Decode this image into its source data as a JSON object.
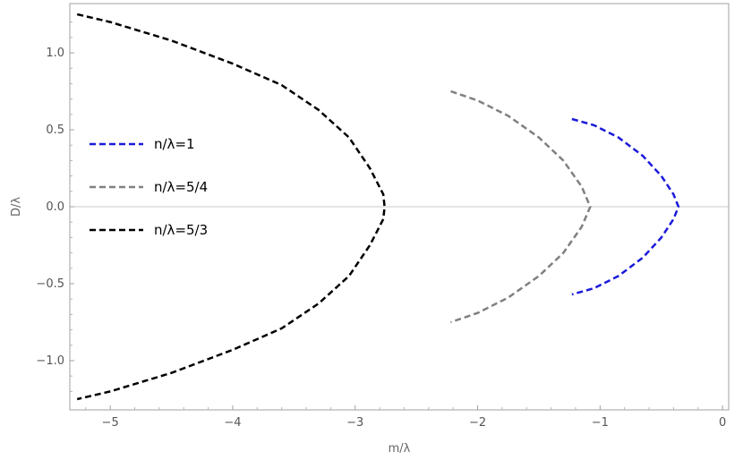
{
  "chart_data": {
    "type": "line",
    "title": "",
    "xlabel": "m/λ",
    "ylabel": "D/λ",
    "xlim": [
      -5.33,
      0.05
    ],
    "ylim": [
      -1.32,
      1.32
    ],
    "xticks": [
      -5,
      -4,
      -3,
      -2,
      -1,
      0
    ],
    "xtick_labels": [
      "−5",
      "−4",
      "−3",
      "−2",
      "−1",
      "0"
    ],
    "yticks": [
      1.0,
      0.5,
      0.0,
      -0.5,
      -1.0
    ],
    "ytick_labels": [
      "1.0",
      "0.5",
      "0.0",
      "−0.5",
      "−1.0"
    ],
    "grid": false,
    "zero_line": true,
    "legend_position": "left",
    "series": [
      {
        "name": "n/λ=1",
        "color": "#1a1adb",
        "style": "dashed",
        "x": [
          -1.23,
          -1.05,
          -0.85,
          -0.65,
          -0.5,
          -0.4,
          -0.36,
          -0.4,
          -0.5,
          -0.65,
          -0.85,
          -1.05,
          -1.23
        ],
        "y": [
          0.57,
          0.53,
          0.45,
          0.33,
          0.2,
          0.08,
          0.0,
          -0.08,
          -0.2,
          -0.33,
          -0.45,
          -0.53,
          -0.57
        ]
      },
      {
        "name": "n/λ=5/4",
        "color": "#808080",
        "style": "dashed",
        "x": [
          -2.22,
          -2.0,
          -1.75,
          -1.5,
          -1.3,
          -1.15,
          -1.08,
          -1.15,
          -1.3,
          -1.5,
          -1.75,
          -2.0,
          -2.22
        ],
        "y": [
          0.75,
          0.69,
          0.59,
          0.45,
          0.3,
          0.13,
          0.0,
          -0.13,
          -0.3,
          -0.45,
          -0.59,
          -0.69,
          -0.75
        ]
      },
      {
        "name": "n/λ=5/3",
        "color": "#000000",
        "style": "dashed",
        "x": [
          -5.27,
          -5.0,
          -4.5,
          -4.0,
          -3.6,
          -3.3,
          -3.05,
          -2.88,
          -2.77,
          -2.76,
          -2.77,
          -2.88,
          -3.05,
          -3.3,
          -3.6,
          -4.0,
          -4.5,
          -5.0,
          -5.27
        ],
        "y": [
          1.25,
          1.2,
          1.08,
          0.93,
          0.79,
          0.63,
          0.45,
          0.25,
          0.08,
          0.0,
          -0.08,
          -0.25,
          -0.45,
          -0.63,
          -0.79,
          -0.93,
          -1.08,
          -1.2,
          -1.25
        ]
      }
    ]
  }
}
